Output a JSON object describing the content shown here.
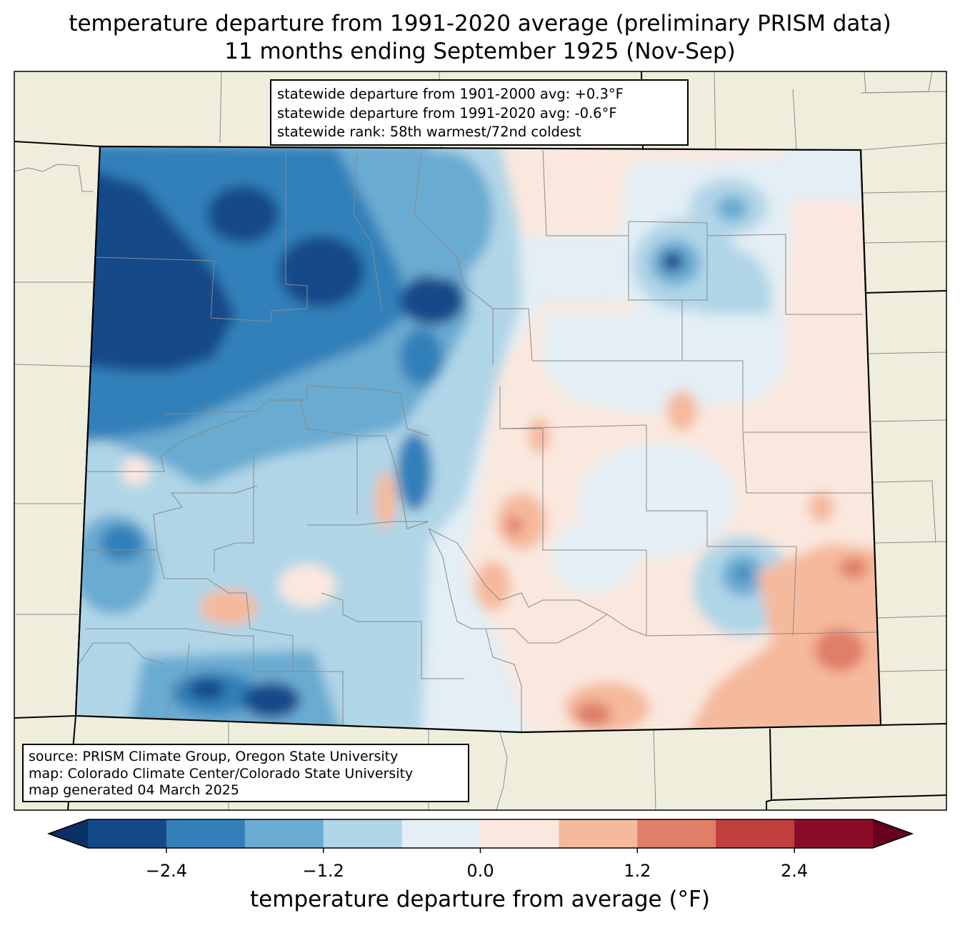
{
  "title": {
    "line1": "temperature departure from 1991-2020 average (preliminary PRISM data)",
    "line2": "11 months ending September 1925 (Nov-Sep)"
  },
  "stats": {
    "line1": "statewide departure from 1901-2000 avg: +0.3°F",
    "line2": "statewide departure from 1991-2020 avg: -0.6°F",
    "line3": "statewide rank: 58th warmest/72nd coldest"
  },
  "source": {
    "line1": "source: PRISM Climate Group, Oregon State University",
    "line2": "map: Colorado Climate Center/Colorado State University",
    "line3": "map generated 04 March 2025"
  },
  "colorbar": {
    "label": "temperature departure from average (°F)",
    "ticks": [
      "−2.4",
      "−1.2",
      "0.0",
      "1.2",
      "2.4"
    ],
    "bins": [
      {
        "min": -3.0,
        "max": -2.4,
        "color": "#154a89"
      },
      {
        "min": -2.4,
        "max": -1.8,
        "color": "#3380b9"
      },
      {
        "min": -1.8,
        "max": -1.2,
        "color": "#6aabd1"
      },
      {
        "min": -1.2,
        "max": -0.6,
        "color": "#b0d5e7"
      },
      {
        "min": -0.6,
        "max": 0.0,
        "color": "#e3eef5"
      },
      {
        "min": 0.0,
        "max": 0.6,
        "color": "#fae8de"
      },
      {
        "min": 0.6,
        "max": 1.2,
        "color": "#f5b99c"
      },
      {
        "min": 1.2,
        "max": 1.8,
        "color": "#e07e67"
      },
      {
        "min": 1.8,
        "max": 2.4,
        "color": "#c13e3f"
      },
      {
        "min": 2.4,
        "max": 3.0,
        "color": "#8a0d27"
      }
    ],
    "under_color": "#0a3065",
    "over_color": "#68001f"
  },
  "colors": {
    "land": "#efeedc",
    "county_line": "#8a8a8a",
    "state_line": "#000000"
  }
}
